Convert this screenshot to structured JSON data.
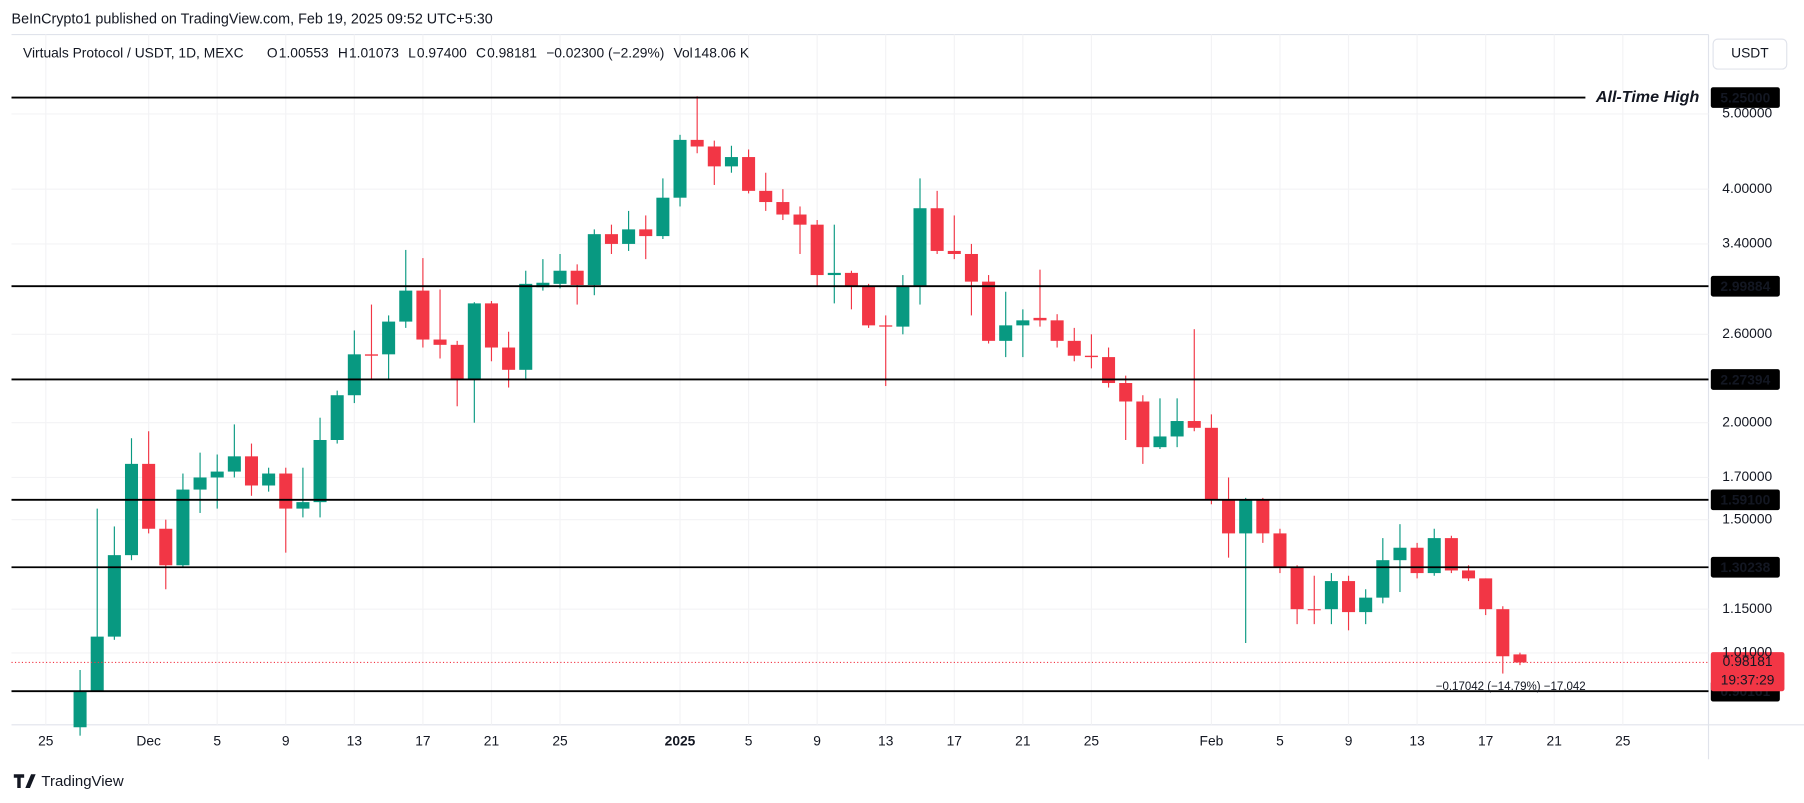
{
  "header": {
    "publisher": "BeInCrypto1 published on TradingView.com, Feb 19, 2025 09:52 UTC+5:30",
    "currency_button": "USDT",
    "brand": "TradingView"
  },
  "chart_data": {
    "type": "candlestick",
    "symbol": "Virtuals Protocol / USDT, 1D, MEXC",
    "legend": [
      {
        "key": "O",
        "value": "1.00553"
      },
      {
        "key": "H",
        "value": "1.01073"
      },
      {
        "key": "L",
        "value": "0.97400"
      },
      {
        "key": "C",
        "value": "0.98181"
      }
    ],
    "change": "−0.02300 (−2.29%)",
    "volume": {
      "key": "Vol",
      "value": "148.06 K"
    },
    "up_color": "#089981",
    "down_color": "#f23645",
    "log_scale": true,
    "grid": true,
    "open": [
      0.81,
      0.9,
      1.06,
      1.35,
      1.77,
      1.46,
      1.31,
      1.64,
      1.7,
      1.73,
      1.81,
      1.66,
      1.72,
      1.55,
      1.58,
      1.9,
      2.17,
      2.45,
      2.45,
      2.7,
      2.96,
      2.56,
      2.52,
      2.28,
      2.85,
      2.5,
      2.34,
      2.99,
      3.02,
      3.14,
      3.01,
      3.5,
      3.4,
      3.55,
      3.48,
      3.9,
      4.63,
      4.54,
      4.28,
      4.4,
      3.98,
      3.85,
      3.71,
      3.6,
      3.1,
      3.12,
      3.0,
      2.67,
      2.66,
      3.0,
      3.78,
      3.33,
      3.3,
      3.04,
      2.55,
      2.67,
      2.73,
      2.71,
      2.55,
      2.44,
      2.43,
      2.25,
      2.13,
      1.86,
      1.92,
      2.01,
      1.97,
      1.59,
      1.44,
      1.59,
      1.44,
      1.3,
      1.15,
      1.15,
      1.25,
      1.14,
      1.19,
      1.33,
      1.38,
      1.28,
      1.42,
      1.29,
      1.26,
      1.15,
      1.00553
    ],
    "high": [
      0.96,
      1.55,
      1.47,
      1.91,
      1.95,
      1.5,
      1.72,
      1.83,
      1.82,
      1.99,
      1.88,
      1.75,
      1.75,
      1.75,
      2.03,
      2.2,
      2.63,
      2.84,
      2.75,
      3.34,
      3.26,
      2.97,
      2.55,
      2.86,
      2.87,
      2.62,
      3.14,
      3.25,
      3.3,
      3.2,
      3.55,
      3.6,
      3.75,
      3.7,
      4.13,
      4.7,
      5.27,
      4.62,
      4.55,
      4.5,
      4.2,
      4.0,
      3.8,
      3.65,
      3.6,
      3.14,
      3.02,
      2.75,
      3.1,
      4.13,
      3.98,
      3.7,
      3.4,
      3.1,
      2.95,
      2.8,
      3.15,
      2.76,
      2.65,
      2.6,
      2.5,
      2.3,
      2.17,
      2.15,
      2.15,
      2.64,
      2.05,
      1.7,
      1.6,
      1.6,
      1.46,
      1.31,
      1.27,
      1.28,
      1.27,
      1.22,
      1.42,
      1.48,
      1.4,
      1.46,
      1.43,
      1.31,
      1.26,
      1.16,
      1.01073
    ],
    "low": [
      0.79,
      0.9,
      1.05,
      1.33,
      1.44,
      1.22,
      1.3,
      1.53,
      1.55,
      1.7,
      1.61,
      1.63,
      1.36,
      1.51,
      1.51,
      1.88,
      2.12,
      2.27,
      2.27,
      2.65,
      2.5,
      2.42,
      2.1,
      2.0,
      2.4,
      2.22,
      2.27,
      2.96,
      2.98,
      2.84,
      2.92,
      3.3,
      3.33,
      3.25,
      3.45,
      3.8,
      4.45,
      4.05,
      4.2,
      3.95,
      3.75,
      3.65,
      3.3,
      3.0,
      2.85,
      2.8,
      2.65,
      2.23,
      2.6,
      2.84,
      3.3,
      3.25,
      2.75,
      2.53,
      2.43,
      2.43,
      2.66,
      2.5,
      2.4,
      2.35,
      2.22,
      1.9,
      1.77,
      1.85,
      1.86,
      1.95,
      1.57,
      1.34,
      1.04,
      1.4,
      1.28,
      1.1,
      1.1,
      1.1,
      1.08,
      1.1,
      1.17,
      1.21,
      1.26,
      1.27,
      1.28,
      1.25,
      1.13,
      0.95,
      0.974
    ],
    "close": [
      0.9,
      1.06,
      1.35,
      1.77,
      1.46,
      1.31,
      1.64,
      1.7,
      1.73,
      1.81,
      1.66,
      1.72,
      1.55,
      1.58,
      1.9,
      2.17,
      2.45,
      2.44,
      2.7,
      2.96,
      2.56,
      2.52,
      2.28,
      2.85,
      2.5,
      2.34,
      3.02,
      3.03,
      3.14,
      3.01,
      3.5,
      3.4,
      3.55,
      3.48,
      3.9,
      4.63,
      4.54,
      4.28,
      4.4,
      3.98,
      3.85,
      3.71,
      3.6,
      3.1,
      3.12,
      3.0,
      2.67,
      2.66,
      3.0,
      3.78,
      3.33,
      3.3,
      3.04,
      2.55,
      2.67,
      2.71,
      2.71,
      2.55,
      2.44,
      2.43,
      2.25,
      2.13,
      1.86,
      1.92,
      2.01,
      1.97,
      1.59,
      1.44,
      1.59,
      1.44,
      1.3,
      1.15,
      1.15,
      1.25,
      1.14,
      1.19,
      1.33,
      1.38,
      1.28,
      1.42,
      1.29,
      1.26,
      1.15,
      1.0,
      0.98181
    ],
    "xlim": [
      -4,
      95
    ],
    "xticks": [
      {
        "value": -2,
        "label": "25"
      },
      {
        "value": 4,
        "label": "Dec"
      },
      {
        "value": 8,
        "label": "5"
      },
      {
        "value": 12,
        "label": "9"
      },
      {
        "value": 16,
        "label": "13"
      },
      {
        "value": 20,
        "label": "17"
      },
      {
        "value": 24,
        "label": "21"
      },
      {
        "value": 28,
        "label": "25"
      },
      {
        "value": 35,
        "label": "2025"
      },
      {
        "value": 39,
        "label": "5"
      },
      {
        "value": 43,
        "label": "9"
      },
      {
        "value": 47,
        "label": "13"
      },
      {
        "value": 51,
        "label": "17"
      },
      {
        "value": 55,
        "label": "21"
      },
      {
        "value": 59,
        "label": "25"
      },
      {
        "value": 66,
        "label": "Feb"
      },
      {
        "value": 70,
        "label": "5"
      },
      {
        "value": 74,
        "label": "9"
      },
      {
        "value": 78,
        "label": "13"
      },
      {
        "value": 82,
        "label": "17"
      },
      {
        "value": 86,
        "label": "21"
      },
      {
        "value": 90,
        "label": "25"
      }
    ],
    "ylim": [
      0.816,
      6.33
    ],
    "yticks": [
      {
        "value": 5,
        "label": "5.00000"
      },
      {
        "value": 4,
        "label": "4.00000"
      },
      {
        "value": 3.4,
        "label": "3.40000"
      },
      {
        "value": 2.6,
        "label": "2.60000"
      },
      {
        "value": 2,
        "label": "2.00000"
      },
      {
        "value": 1.7,
        "label": "1.70000"
      },
      {
        "value": 1.5,
        "label": "1.50000"
      },
      {
        "value": 1.15,
        "label": "1.15000"
      },
      {
        "value": 1.01,
        "label": "1.01000"
      }
    ],
    "levels": [
      {
        "value": 5.25,
        "label": "5.25000",
        "annotation": "All-Time High"
      },
      2.99884,
      2.27394,
      {
        "value": 1.591,
        "label": "1.59100"
      },
      1.30238,
      0.90161
    ],
    "current_price": 0.98181,
    "countdown": "19:37:29",
    "measure": "−0.17042 (−14.79%) −17,042"
  }
}
